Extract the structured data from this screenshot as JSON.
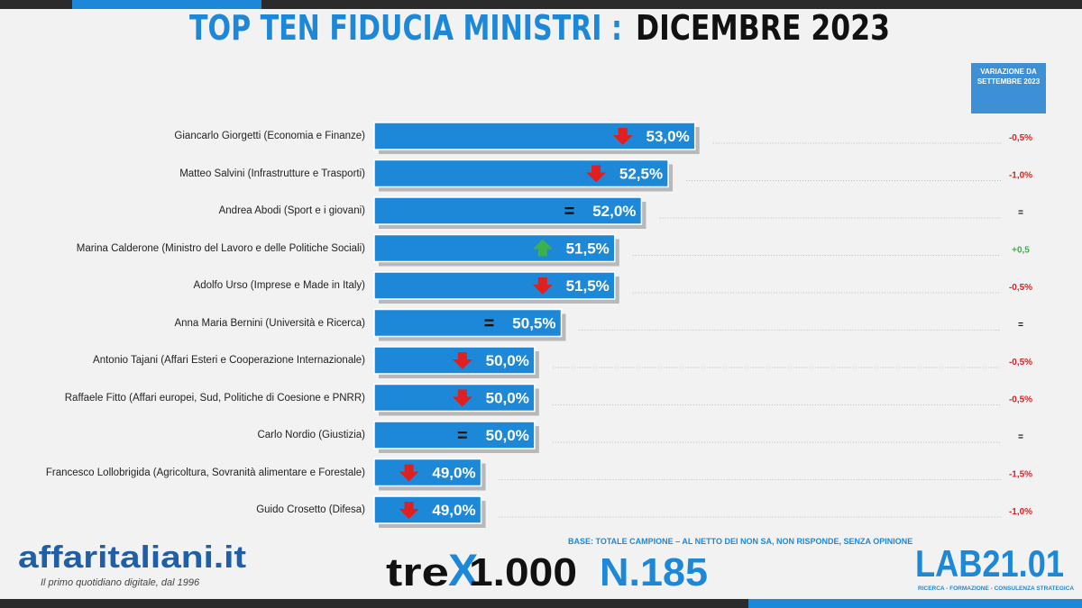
{
  "chart_data": {
    "type": "hbar",
    "title": "TOP TEN FIDUCIA MINISTRI :",
    "subtitle": "DICEMBRE 2023",
    "change_header": "VARIAZIONE DA SETTEMBRE 2023",
    "categories": [
      "Giancarlo Giorgetti (Economia e Finanze)",
      "Matteo Salvini (Infrastrutture e Trasporti)",
      "Andrea Abodi (Sport e i giovani)",
      "Marina Calderone (Ministro del Lavoro e delle Politiche Sociali)",
      "Adolfo Urso (Imprese e Made in Italy)",
      "Anna Maria Bernini (Università e Ricerca)",
      "Antonio Tajani (Affari Esteri e Cooperazione Internazionale)",
      "Raffaele Fitto (Affari europei, Sud, Politiche di Coesione e PNRR)",
      "Carlo Nordio (Giustizia)",
      "Francesco Lollobrigida (Agricoltura, Sovranità alimentare e Forestale)",
      "Guido Crosetto (Difesa)"
    ],
    "values": [
      53.0,
      52.5,
      52.0,
      51.5,
      51.5,
      50.5,
      50.0,
      50.0,
      50.0,
      49.0,
      49.0
    ],
    "value_labels": [
      "53,0%",
      "52,5%",
      "52,0%",
      "51,5%",
      "51,5%",
      "50,5%",
      "50,0%",
      "50,0%",
      "50,0%",
      "49,0%",
      "49,0%"
    ],
    "trend": [
      "down",
      "down",
      "=",
      "up",
      "down",
      "=",
      "down",
      "down",
      "=",
      "down",
      "down"
    ],
    "changes": [
      "-0,5%",
      "-1,0%",
      "=",
      "+0,5",
      "-0,5%",
      "=",
      "-0,5%",
      "-0,5%",
      "=",
      "-1,5%",
      "-1,0%"
    ],
    "color": "#1e88d8",
    "xlim": [
      47,
      54
    ],
    "note": "BASE: TOTALE CAMPIONE – AL NETTO DEI NON SA, NON RISPONDE, SENZA OPINIONE"
  },
  "footer": {
    "brand": "affaritaliani.it",
    "tagline": "Il primo quotidiano digitale, dal 1996",
    "series_pre": "tre",
    "series_x": "X",
    "series_num": "1.000",
    "issue": "N.185",
    "lab": "LAB21.01",
    "lab_tagline": "RICERCA - FORMAZIONE - CONSULENZA STRATEGICA"
  }
}
